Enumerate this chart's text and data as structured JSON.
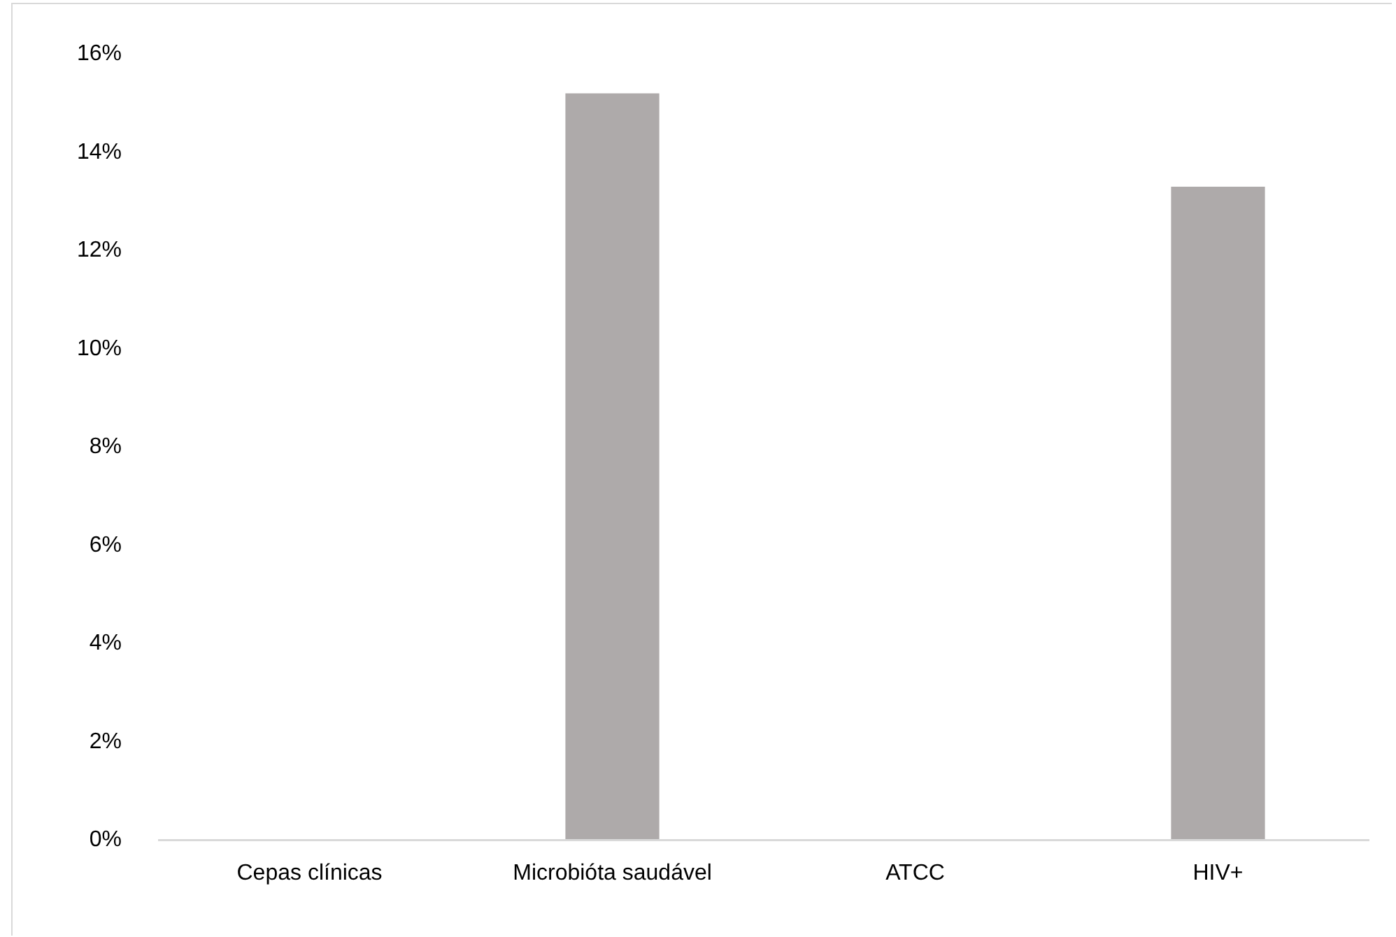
{
  "chart_data": {
    "type": "bar",
    "categories": [
      "Cepas clínicas",
      "Microbióta saudável",
      "ATCC",
      "HIV+"
    ],
    "values": [
      0,
      15.2,
      0,
      13.3
    ],
    "color": "#aeaaaa",
    "ylim": [
      0,
      16
    ],
    "yticks": [
      {
        "value": 0,
        "label": "0%"
      },
      {
        "value": 2,
        "label": "2%"
      },
      {
        "value": 4,
        "label": "4%"
      },
      {
        "value": 6,
        "label": "6%"
      },
      {
        "value": 8,
        "label": "8%"
      },
      {
        "value": 10,
        "label": "10%"
      },
      {
        "value": 12,
        "label": "12%"
      },
      {
        "value": 14,
        "label": "14%"
      },
      {
        "value": 16,
        "label": "16%"
      }
    ],
    "grid": false,
    "legend": false
  }
}
